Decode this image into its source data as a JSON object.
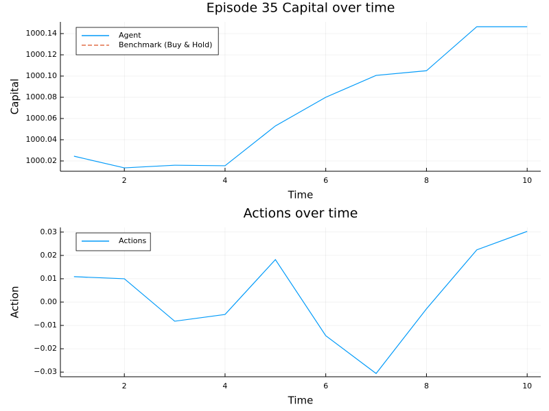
{
  "chart_data": [
    {
      "type": "line",
      "title": "Episode 35 Capital over time",
      "x_label": "Time",
      "y_label": "Capital",
      "x": [
        1,
        2,
        3,
        4,
        5,
        6,
        7,
        8,
        9,
        10
      ],
      "series": [
        {
          "name": "Agent",
          "color": "#009af9",
          "style": "solid",
          "values": [
            1000.0245,
            1000.0135,
            1000.016,
            1000.0155,
            1000.053,
            1000.08,
            1000.1006,
            1000.105,
            1000.1465,
            1000.1465
          ]
        },
        {
          "name": "Benchmark (Buy & Hold)",
          "color": "#e26f46",
          "style": "dashed",
          "values": [
            null,
            null,
            null,
            null,
            null,
            null,
            null,
            null,
            null,
            null
          ]
        }
      ],
      "xlim": [
        0.73,
        10.27
      ],
      "xticks": [
        2,
        4,
        6,
        8,
        10
      ],
      "ylim": [
        1000.0103,
        1000.151
      ],
      "yticks": [
        {
          "value": 1000.02,
          "label": "1000.02"
        },
        {
          "value": 1000.04,
          "label": "1000.04"
        },
        {
          "value": 1000.06,
          "label": "1000.06"
        },
        {
          "value": 1000.08,
          "label": "1000.08"
        },
        {
          "value": 1000.1,
          "label": "1000.10"
        },
        {
          "value": 1000.12,
          "label": "1000.12"
        },
        {
          "value": 1000.14,
          "label": "1000.14"
        }
      ],
      "grid": true,
      "legend": "top-left"
    },
    {
      "type": "line",
      "title": "Actions over time",
      "x_label": "Time",
      "y_label": "Action",
      "x": [
        1,
        2,
        3,
        4,
        5,
        6,
        7,
        8,
        9,
        10
      ],
      "series": [
        {
          "name": "Actions",
          "color": "#009af9",
          "style": "solid",
          "values": [
            0.0109,
            0.01,
            -0.0082,
            -0.0053,
            0.0182,
            -0.0144,
            -0.0306,
            -0.0029,
            0.0224,
            0.0303
          ]
        }
      ],
      "xlim": [
        0.73,
        10.27
      ],
      "xticks": [
        2,
        4,
        6,
        8,
        10
      ],
      "ylim": [
        -0.032,
        0.032
      ],
      "yticks": [
        {
          "value": -0.03,
          "label": "−0.03"
        },
        {
          "value": -0.02,
          "label": "−0.02"
        },
        {
          "value": -0.01,
          "label": "−0.01"
        },
        {
          "value": 0,
          "label": "0.00"
        },
        {
          "value": 0.01,
          "label": "0.01"
        },
        {
          "value": 0.02,
          "label": "0.02"
        },
        {
          "value": 0.03,
          "label": "0.03"
        }
      ],
      "grid": true,
      "legend": "top-left"
    }
  ]
}
